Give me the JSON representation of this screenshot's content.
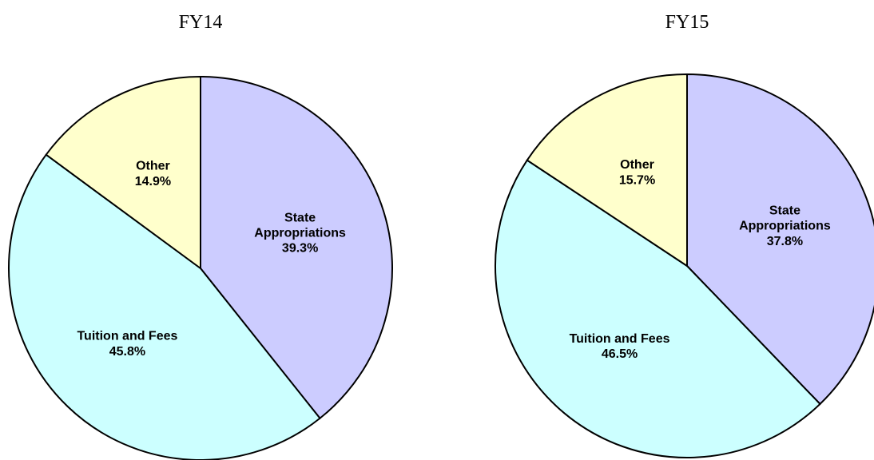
{
  "chart_data": [
    {
      "type": "pie",
      "title": "FY14",
      "categories": [
        "State Appropriations",
        "Tuition and Fees",
        "Other"
      ],
      "values": [
        39.3,
        45.8,
        14.9
      ],
      "value_labels": [
        "39.3%",
        "45.8%",
        "14.9%"
      ],
      "colors": [
        "#ccccff",
        "#ccffff",
        "#ffffcc"
      ]
    },
    {
      "type": "pie",
      "title": "FY15",
      "categories": [
        "State Appropriations",
        "Tuition and Fees",
        "Other"
      ],
      "values": [
        37.8,
        46.5,
        15.7
      ],
      "value_labels": [
        "37.8%",
        "46.5%",
        "15.7%"
      ],
      "colors": [
        "#ccccff",
        "#ccffff",
        "#ffffcc"
      ]
    }
  ]
}
